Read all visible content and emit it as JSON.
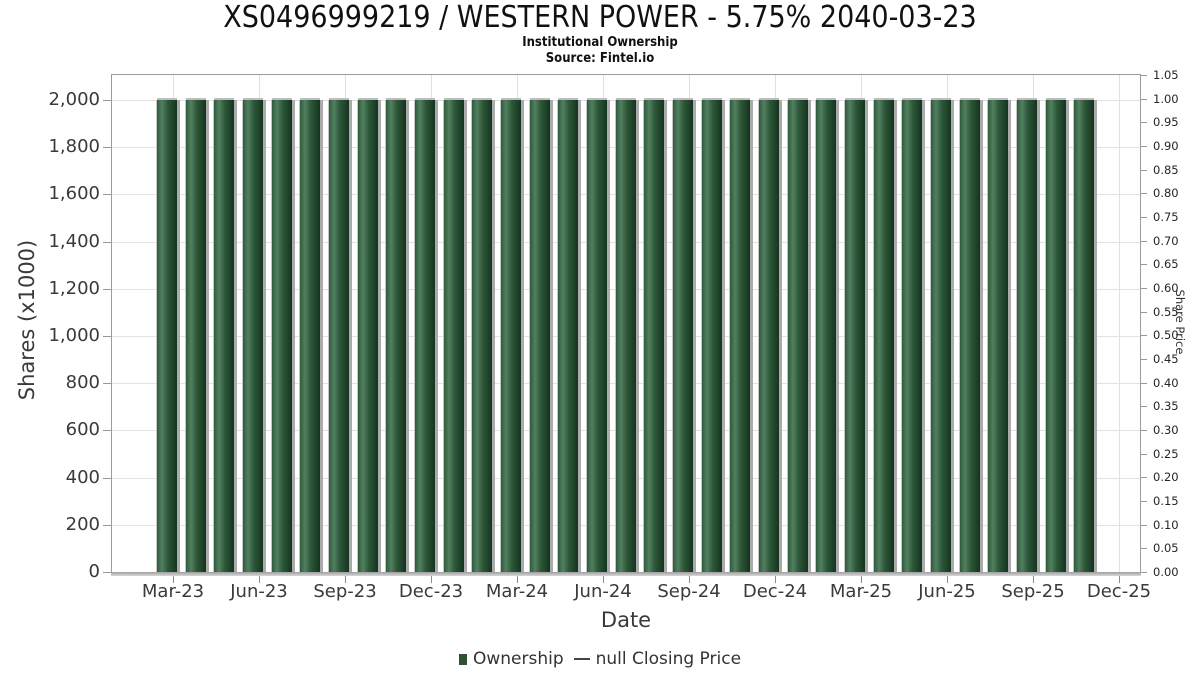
{
  "header": {
    "title": "XS0496999219 / WESTERN POWER - 5.75% 2040-03-23",
    "subtitle": "Institutional Ownership",
    "source": "Source: Fintel.io"
  },
  "chart_data": {
    "type": "bar",
    "title": "XS0496999219 / WESTERN POWER - 5.75% 2040-03-23",
    "subtitle": "Institutional Ownership",
    "source": "Source: Fintel.io",
    "xlabel": "Date",
    "ylabel_left": "Shares (x1000)",
    "ylabel_right": "Share Price",
    "grid": true,
    "legend_position": "bottom-center",
    "x_ticks": [
      "Mar-23",
      "Jun-23",
      "Sep-23",
      "Dec-23",
      "Mar-24",
      "Jun-24",
      "Sep-24",
      "Dec-24",
      "Mar-25",
      "Jun-25",
      "Sep-25",
      "Dec-25"
    ],
    "categories": [
      "Mar-23",
      "Apr-23",
      "May-23",
      "Jun-23",
      "Jul-23",
      "Aug-23",
      "Sep-23",
      "Oct-23",
      "Nov-23",
      "Dec-23",
      "Jan-24",
      "Feb-24",
      "Mar-24",
      "Apr-24",
      "May-24",
      "Jun-24",
      "Jul-24",
      "Aug-24",
      "Sep-24",
      "Oct-24",
      "Nov-24",
      "Dec-24",
      "Jan-25",
      "Feb-25",
      "Mar-25",
      "Apr-25",
      "May-25",
      "Jun-25",
      "Jul-25",
      "Aug-25",
      "Sep-25",
      "Oct-25",
      "Nov-25"
    ],
    "series": [
      {
        "name": "Ownership",
        "unit": "shares x1000",
        "color": "#2a5233",
        "values": [
          2000,
          2000,
          2000,
          2000,
          2000,
          2000,
          2000,
          2000,
          2000,
          2000,
          2000,
          2000,
          2000,
          2000,
          2000,
          2000,
          2000,
          2000,
          2000,
          2000,
          2000,
          2000,
          2000,
          2000,
          2000,
          2000,
          2000,
          2000,
          2000,
          2000,
          2000,
          2000,
          2000
        ]
      },
      {
        "name": "null Closing Price",
        "unit": "share price",
        "color": "#454545",
        "values": []
      }
    ],
    "y_left": {
      "lim": [
        0,
        2106
      ],
      "ticks": [
        0,
        200,
        400,
        600,
        800,
        1000,
        1200,
        1400,
        1600,
        1800,
        2000
      ]
    },
    "y_right": {
      "lim": [
        0,
        1.05
      ],
      "ticks": [
        0.0,
        0.05,
        0.1,
        0.15,
        0.2,
        0.25,
        0.3,
        0.35,
        0.4,
        0.45,
        0.5,
        0.55,
        0.6,
        0.65,
        0.7,
        0.75,
        0.8,
        0.85,
        0.9,
        0.95,
        1.0,
        1.05
      ]
    },
    "legend": [
      {
        "label": "Ownership",
        "marker": "square",
        "color": "#2a5233"
      },
      {
        "label": "null Closing Price",
        "marker": "line",
        "color": "#454545"
      }
    ]
  }
}
